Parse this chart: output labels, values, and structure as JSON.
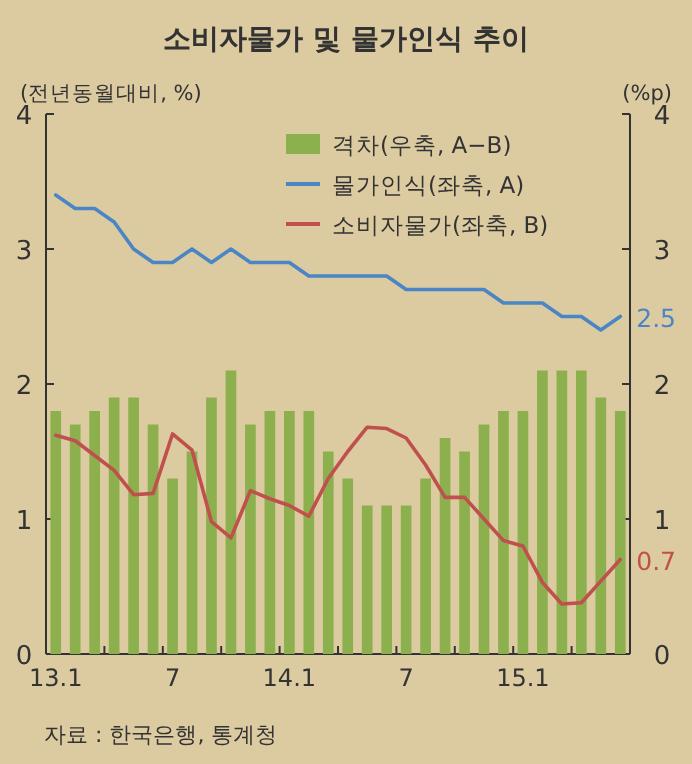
{
  "chart_data": {
    "type": "bar",
    "title": "소비자물가 및 물가인식 추이",
    "ylabel": "(전년동월대비, %)",
    "y2label": "(%p)",
    "categories": [
      "13.1",
      null,
      null,
      null,
      null,
      null,
      "7",
      null,
      null,
      null,
      null,
      null,
      "14.1",
      null,
      null,
      null,
      null,
      null,
      "7",
      null,
      null,
      null,
      null,
      null,
      "15.1",
      null,
      null,
      null,
      null,
      null
    ],
    "series": [
      {
        "name": "격차(우축, A−B)",
        "axis": "y2",
        "color": "#8db04f",
        "values": [
          1.8,
          1.7,
          1.8,
          1.9,
          1.9,
          1.7,
          1.3,
          1.5,
          1.9,
          2.1,
          1.7,
          1.8,
          1.8,
          1.8,
          1.5,
          1.3,
          1.1,
          1.1,
          1.1,
          1.3,
          1.6,
          1.5,
          1.7,
          1.8,
          1.8,
          2.1,
          2.1,
          2.1,
          1.9,
          1.8
        ]
      },
      {
        "name": "물가인식(좌축, A)",
        "type": "line",
        "color": "#4a86c5",
        "values": [
          3.4,
          3.3,
          3.3,
          3.2,
          3.0,
          2.9,
          2.9,
          3.0,
          2.9,
          3.0,
          2.9,
          2.9,
          2.9,
          2.8,
          2.8,
          2.8,
          2.8,
          2.8,
          2.7,
          2.7,
          2.7,
          2.7,
          2.7,
          2.6,
          2.6,
          2.6,
          2.5,
          2.5,
          2.4,
          2.5
        ],
        "value_labels": [
          null,
          null,
          null,
          null,
          null,
          null,
          null,
          null,
          null,
          null,
          null,
          null,
          null,
          null,
          null,
          null,
          null,
          null,
          null,
          null,
          null,
          null,
          null,
          null,
          null,
          null,
          null,
          null,
          null,
          "2.5"
        ]
      },
      {
        "name": "소비자물가(좌축, B)",
        "type": "line",
        "color": "#c0504d",
        "values": [
          1.62,
          1.58,
          1.47,
          1.36,
          1.18,
          1.19,
          1.63,
          1.51,
          0.98,
          0.86,
          1.21,
          1.15,
          1.1,
          1.02,
          1.3,
          1.5,
          1.68,
          1.67,
          1.6,
          1.4,
          1.16,
          1.16,
          1.0,
          0.84,
          0.8,
          0.53,
          0.37,
          0.38,
          0.54,
          0.7
        ],
        "value_labels": [
          null,
          null,
          null,
          null,
          null,
          null,
          null,
          null,
          null,
          null,
          null,
          null,
          null,
          null,
          null,
          null,
          null,
          null,
          null,
          null,
          null,
          null,
          null,
          null,
          null,
          null,
          null,
          null,
          null,
          "0.7"
        ]
      }
    ],
    "ylim": [
      0,
      4
    ],
    "yticks": [
      0,
      1,
      2,
      3,
      4
    ],
    "y2lim": [
      0,
      4
    ],
    "y2ticks": [
      0,
      1,
      2,
      3,
      4
    ],
    "legend": "top right",
    "annotations": [
      "자료 : 한국은행, 통계청"
    ]
  }
}
